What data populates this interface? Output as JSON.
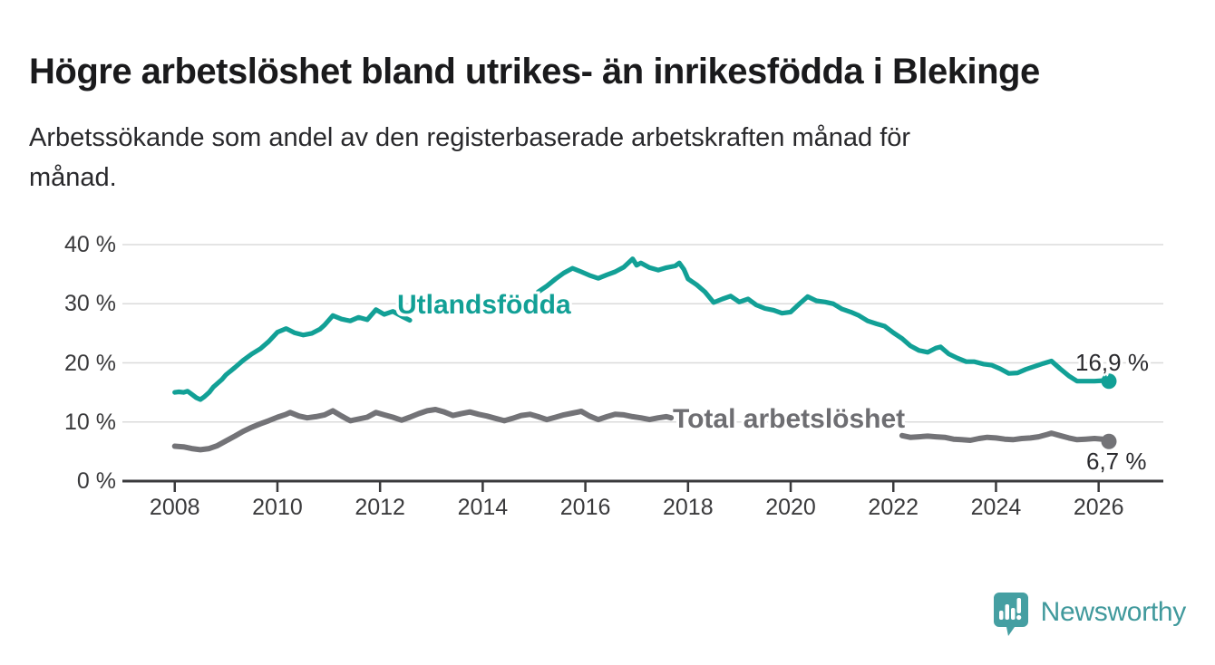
{
  "header": {
    "title": "Högre arbetslöshet bland utrikes- än inrikesfödda i Blekinge",
    "subtitle_lines": [
      "Arbetssökande som andel av den registerbaserade arbetskraften månad för",
      "månad."
    ]
  },
  "footer": {
    "brand": "Newsworthy",
    "logo_icon": "newsworthy-speech-bubble-bar-chart-icon",
    "brand_color": "#40999c"
  },
  "colors": {
    "foreign_born_line": "#12a096",
    "total_line": "#737377",
    "grid": "#dbdbdb",
    "axis": "#3a3a3c",
    "tick_text": "#3a3a3c",
    "end_label_text": "#2a2a2e"
  },
  "chart_data": {
    "type": "line",
    "title": "Högre arbetslöshet bland utrikes- än inrikesfödda i Blekinge",
    "subtitle": "Arbetssökande som andel av den registerbaserade arbetskraften månad för månad.",
    "xlabel": "",
    "ylabel": "",
    "grid": true,
    "legend_position": "inline-labels",
    "xlim": [
      2006.98,
      2027.26
    ],
    "ylim": [
      0,
      42.5
    ],
    "x_ticks": {
      "values": [
        2008,
        2010,
        2012,
        2014,
        2016,
        2018,
        2020,
        2022,
        2024,
        2026
      ],
      "labels": [
        "2008",
        "2010",
        "2012",
        "2014",
        "2016",
        "2018",
        "2020",
        "2022",
        "2024",
        "2026"
      ]
    },
    "y_ticks": {
      "values": [
        0,
        10,
        20,
        30,
        40
      ],
      "labels": [
        "0 %",
        "10 %",
        "20 %",
        "30 %",
        "40 %"
      ]
    },
    "series": [
      {
        "name": "Utlandsfödda",
        "color": "#12a096",
        "end_label": "16,9 %",
        "end_value": 16.9,
        "label_cover_gap_years": [
          2012.62,
          2015.05
        ],
        "points": [
          [
            2008.0,
            15.0
          ],
          [
            2008.08,
            15.1
          ],
          [
            2008.17,
            15.0
          ],
          [
            2008.25,
            15.2
          ],
          [
            2008.33,
            14.7
          ],
          [
            2008.42,
            14.1
          ],
          [
            2008.5,
            13.8
          ],
          [
            2008.58,
            14.3
          ],
          [
            2008.67,
            15.0
          ],
          [
            2008.75,
            15.9
          ],
          [
            2008.83,
            16.5
          ],
          [
            2008.92,
            17.2
          ],
          [
            2009.0,
            18.0
          ],
          [
            2009.17,
            19.2
          ],
          [
            2009.33,
            20.4
          ],
          [
            2009.5,
            21.5
          ],
          [
            2009.67,
            22.4
          ],
          [
            2009.83,
            23.6
          ],
          [
            2010.0,
            25.2
          ],
          [
            2010.17,
            25.8
          ],
          [
            2010.33,
            25.1
          ],
          [
            2010.5,
            24.7
          ],
          [
            2010.67,
            25.0
          ],
          [
            2010.83,
            25.7
          ],
          [
            2010.92,
            26.4
          ],
          [
            2011.08,
            28.0
          ],
          [
            2011.25,
            27.4
          ],
          [
            2011.42,
            27.1
          ],
          [
            2011.58,
            27.7
          ],
          [
            2011.75,
            27.3
          ],
          [
            2011.92,
            29.0
          ],
          [
            2012.08,
            28.2
          ],
          [
            2012.25,
            28.7
          ],
          [
            2012.42,
            27.9
          ],
          [
            2012.58,
            27.2
          ],
          [
            2012.75,
            27.6
          ],
          [
            2012.92,
            28.0
          ],
          [
            2013.08,
            28.4
          ],
          [
            2013.25,
            28.9
          ],
          [
            2013.42,
            29.2
          ],
          [
            2013.58,
            28.9
          ],
          [
            2013.75,
            29.3
          ],
          [
            2013.92,
            29.7
          ],
          [
            2014.08,
            30.1
          ],
          [
            2014.25,
            30.3
          ],
          [
            2014.42,
            30.0
          ],
          [
            2014.58,
            30.4
          ],
          [
            2014.75,
            30.8
          ],
          [
            2014.92,
            31.3
          ],
          [
            2015.08,
            32.0
          ],
          [
            2015.25,
            33.0
          ],
          [
            2015.42,
            34.2
          ],
          [
            2015.58,
            35.2
          ],
          [
            2015.75,
            36.0
          ],
          [
            2015.92,
            35.4
          ],
          [
            2016.08,
            34.8
          ],
          [
            2016.25,
            34.3
          ],
          [
            2016.42,
            34.9
          ],
          [
            2016.58,
            35.4
          ],
          [
            2016.75,
            36.2
          ],
          [
            2016.92,
            37.6
          ],
          [
            2017.0,
            36.5
          ],
          [
            2017.08,
            36.9
          ],
          [
            2017.25,
            36.1
          ],
          [
            2017.42,
            35.7
          ],
          [
            2017.58,
            36.1
          ],
          [
            2017.75,
            36.4
          ],
          [
            2017.83,
            36.9
          ],
          [
            2017.92,
            35.8
          ],
          [
            2018.0,
            34.2
          ],
          [
            2018.17,
            33.2
          ],
          [
            2018.33,
            32.0
          ],
          [
            2018.5,
            30.2
          ],
          [
            2018.67,
            30.8
          ],
          [
            2018.83,
            31.3
          ],
          [
            2019.0,
            30.3
          ],
          [
            2019.17,
            30.8
          ],
          [
            2019.33,
            29.8
          ],
          [
            2019.5,
            29.2
          ],
          [
            2019.67,
            28.9
          ],
          [
            2019.83,
            28.4
          ],
          [
            2020.0,
            28.6
          ],
          [
            2020.17,
            30.0
          ],
          [
            2020.33,
            31.2
          ],
          [
            2020.5,
            30.5
          ],
          [
            2020.67,
            30.3
          ],
          [
            2020.83,
            30.0
          ],
          [
            2021.0,
            29.1
          ],
          [
            2021.17,
            28.6
          ],
          [
            2021.33,
            28.0
          ],
          [
            2021.5,
            27.1
          ],
          [
            2021.67,
            26.6
          ],
          [
            2021.83,
            26.2
          ],
          [
            2022.0,
            25.1
          ],
          [
            2022.17,
            24.1
          ],
          [
            2022.33,
            22.9
          ],
          [
            2022.5,
            22.1
          ],
          [
            2022.67,
            21.8
          ],
          [
            2022.83,
            22.5
          ],
          [
            2022.92,
            22.7
          ],
          [
            2023.08,
            21.5
          ],
          [
            2023.25,
            20.8
          ],
          [
            2023.42,
            20.2
          ],
          [
            2023.58,
            20.2
          ],
          [
            2023.75,
            19.8
          ],
          [
            2023.92,
            19.6
          ],
          [
            2024.08,
            19.0
          ],
          [
            2024.25,
            18.2
          ],
          [
            2024.42,
            18.3
          ],
          [
            2024.58,
            18.9
          ],
          [
            2024.75,
            19.4
          ],
          [
            2024.92,
            19.9
          ],
          [
            2025.08,
            20.3
          ],
          [
            2025.25,
            19.0
          ],
          [
            2025.42,
            17.8
          ],
          [
            2025.58,
            16.9
          ],
          [
            2025.75,
            16.9
          ],
          [
            2025.92,
            16.9
          ],
          [
            2026.08,
            17.0
          ],
          [
            2026.2,
            16.9
          ]
        ]
      },
      {
        "name": "Total arbetslöshet",
        "color": "#737377",
        "end_label": "6,7 %",
        "end_value": 6.7,
        "label_cover_gap_years": [
          2017.7,
          2022.1
        ],
        "points": [
          [
            2008.0,
            5.9
          ],
          [
            2008.17,
            5.8
          ],
          [
            2008.33,
            5.5
          ],
          [
            2008.5,
            5.3
          ],
          [
            2008.67,
            5.5
          ],
          [
            2008.83,
            6.0
          ],
          [
            2009.0,
            6.8
          ],
          [
            2009.17,
            7.6
          ],
          [
            2009.33,
            8.4
          ],
          [
            2009.5,
            9.1
          ],
          [
            2009.67,
            9.7
          ],
          [
            2009.83,
            10.2
          ],
          [
            2010.0,
            10.8
          ],
          [
            2010.17,
            11.3
          ],
          [
            2010.25,
            11.6
          ],
          [
            2010.42,
            11.0
          ],
          [
            2010.58,
            10.7
          ],
          [
            2010.75,
            10.9
          ],
          [
            2010.92,
            11.2
          ],
          [
            2011.08,
            11.9
          ],
          [
            2011.25,
            11.0
          ],
          [
            2011.42,
            10.2
          ],
          [
            2011.58,
            10.5
          ],
          [
            2011.75,
            10.8
          ],
          [
            2011.92,
            11.6
          ],
          [
            2012.08,
            11.2
          ],
          [
            2012.25,
            10.8
          ],
          [
            2012.42,
            10.3
          ],
          [
            2012.58,
            10.8
          ],
          [
            2012.75,
            11.4
          ],
          [
            2012.92,
            11.9
          ],
          [
            2013.08,
            12.1
          ],
          [
            2013.25,
            11.7
          ],
          [
            2013.42,
            11.1
          ],
          [
            2013.58,
            11.4
          ],
          [
            2013.75,
            11.7
          ],
          [
            2013.92,
            11.3
          ],
          [
            2014.08,
            11.0
          ],
          [
            2014.25,
            10.6
          ],
          [
            2014.42,
            10.2
          ],
          [
            2014.58,
            10.6
          ],
          [
            2014.75,
            11.1
          ],
          [
            2014.92,
            11.3
          ],
          [
            2015.08,
            10.9
          ],
          [
            2015.25,
            10.4
          ],
          [
            2015.42,
            10.8
          ],
          [
            2015.58,
            11.2
          ],
          [
            2015.75,
            11.5
          ],
          [
            2015.92,
            11.8
          ],
          [
            2016.08,
            11.0
          ],
          [
            2016.25,
            10.4
          ],
          [
            2016.42,
            10.9
          ],
          [
            2016.58,
            11.3
          ],
          [
            2016.75,
            11.2
          ],
          [
            2016.92,
            10.9
          ],
          [
            2017.08,
            10.7
          ],
          [
            2017.25,
            10.4
          ],
          [
            2017.42,
            10.7
          ],
          [
            2017.58,
            10.9
          ],
          [
            2017.67,
            10.7
          ],
          [
            2017.83,
            10.3
          ],
          [
            2018.0,
            9.9
          ],
          [
            2018.25,
            9.6
          ],
          [
            2018.5,
            9.3
          ],
          [
            2018.75,
            9.1
          ],
          [
            2019.0,
            8.9
          ],
          [
            2019.25,
            8.8
          ],
          [
            2019.5,
            8.7
          ],
          [
            2019.75,
            8.9
          ],
          [
            2020.0,
            9.3
          ],
          [
            2020.25,
            10.2
          ],
          [
            2020.5,
            10.8
          ],
          [
            2020.75,
            10.6
          ],
          [
            2021.0,
            10.1
          ],
          [
            2021.25,
            9.6
          ],
          [
            2021.5,
            9.1
          ],
          [
            2021.75,
            8.7
          ],
          [
            2022.0,
            8.2
          ],
          [
            2022.17,
            7.7
          ],
          [
            2022.33,
            7.4
          ],
          [
            2022.5,
            7.5
          ],
          [
            2022.67,
            7.6
          ],
          [
            2022.83,
            7.5
          ],
          [
            2023.0,
            7.4
          ],
          [
            2023.17,
            7.1
          ],
          [
            2023.33,
            7.0
          ],
          [
            2023.5,
            6.9
          ],
          [
            2023.67,
            7.2
          ],
          [
            2023.83,
            7.4
          ],
          [
            2024.0,
            7.3
          ],
          [
            2024.17,
            7.1
          ],
          [
            2024.33,
            7.0
          ],
          [
            2024.5,
            7.2
          ],
          [
            2024.67,
            7.3
          ],
          [
            2024.83,
            7.5
          ],
          [
            2025.0,
            7.9
          ],
          [
            2025.08,
            8.1
          ],
          [
            2025.25,
            7.7
          ],
          [
            2025.42,
            7.3
          ],
          [
            2025.58,
            7.0
          ],
          [
            2025.75,
            7.1
          ],
          [
            2025.92,
            7.2
          ],
          [
            2026.08,
            7.1
          ],
          [
            2026.2,
            6.7
          ]
        ]
      }
    ]
  }
}
